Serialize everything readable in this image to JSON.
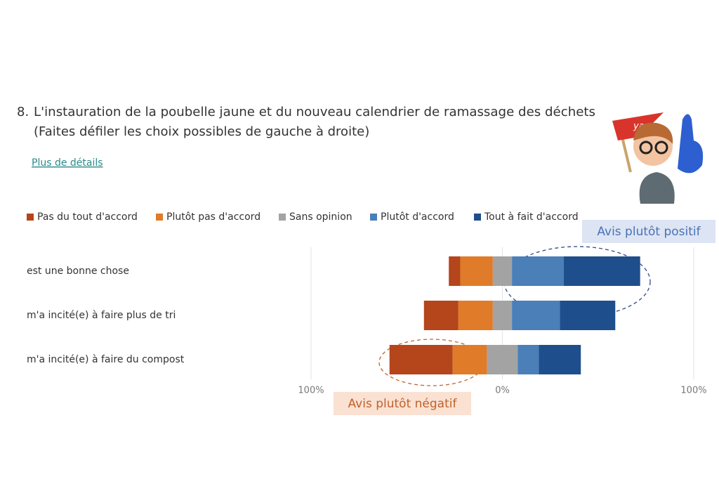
{
  "question": {
    "number": "8.",
    "text": "L'instauration de la poubelle jaune et du nouveau calendrier de ramassage des déchets",
    "subtitle": "(Faites défiler les choix possibles de gauche à droite)",
    "link": "Plus de détails"
  },
  "chart_data": {
    "type": "diverging-bar",
    "categories": [
      "est une bonne chose",
      "m'a incité(e) à faire plus de tri",
      "m'a incité(e) à faire du compost"
    ],
    "series": [
      {
        "name": "Pas du tout d'accord",
        "color": "#b5451b",
        "values": [
          6,
          18,
          33
        ]
      },
      {
        "name": "Plutôt pas d'accord",
        "color": "#e07b2a",
        "values": [
          17,
          18,
          18
        ]
      },
      {
        "name": "Sans opinion",
        "color": "#a3a3a3",
        "values": [
          10,
          10,
          16
        ]
      },
      {
        "name": "Plutôt d'accord",
        "color": "#4a7fb8",
        "values": [
          27,
          25,
          11
        ]
      },
      {
        "name": "Tout à fait d'accord",
        "color": "#1f4e8c",
        "values": [
          40,
          29,
          22
        ]
      }
    ],
    "neutral_series": 2,
    "xlim": [
      -100,
      100
    ],
    "xticks": [
      {
        "value": -100,
        "label": "100%"
      },
      {
        "value": 0,
        "label": "0%"
      },
      {
        "value": 100,
        "label": "100%"
      }
    ],
    "grid": true,
    "legend": "top",
    "annotations": [
      "Avis plutôt positif",
      "Avis plutôt négatif"
    ],
    "sticker_text": "yay"
  }
}
